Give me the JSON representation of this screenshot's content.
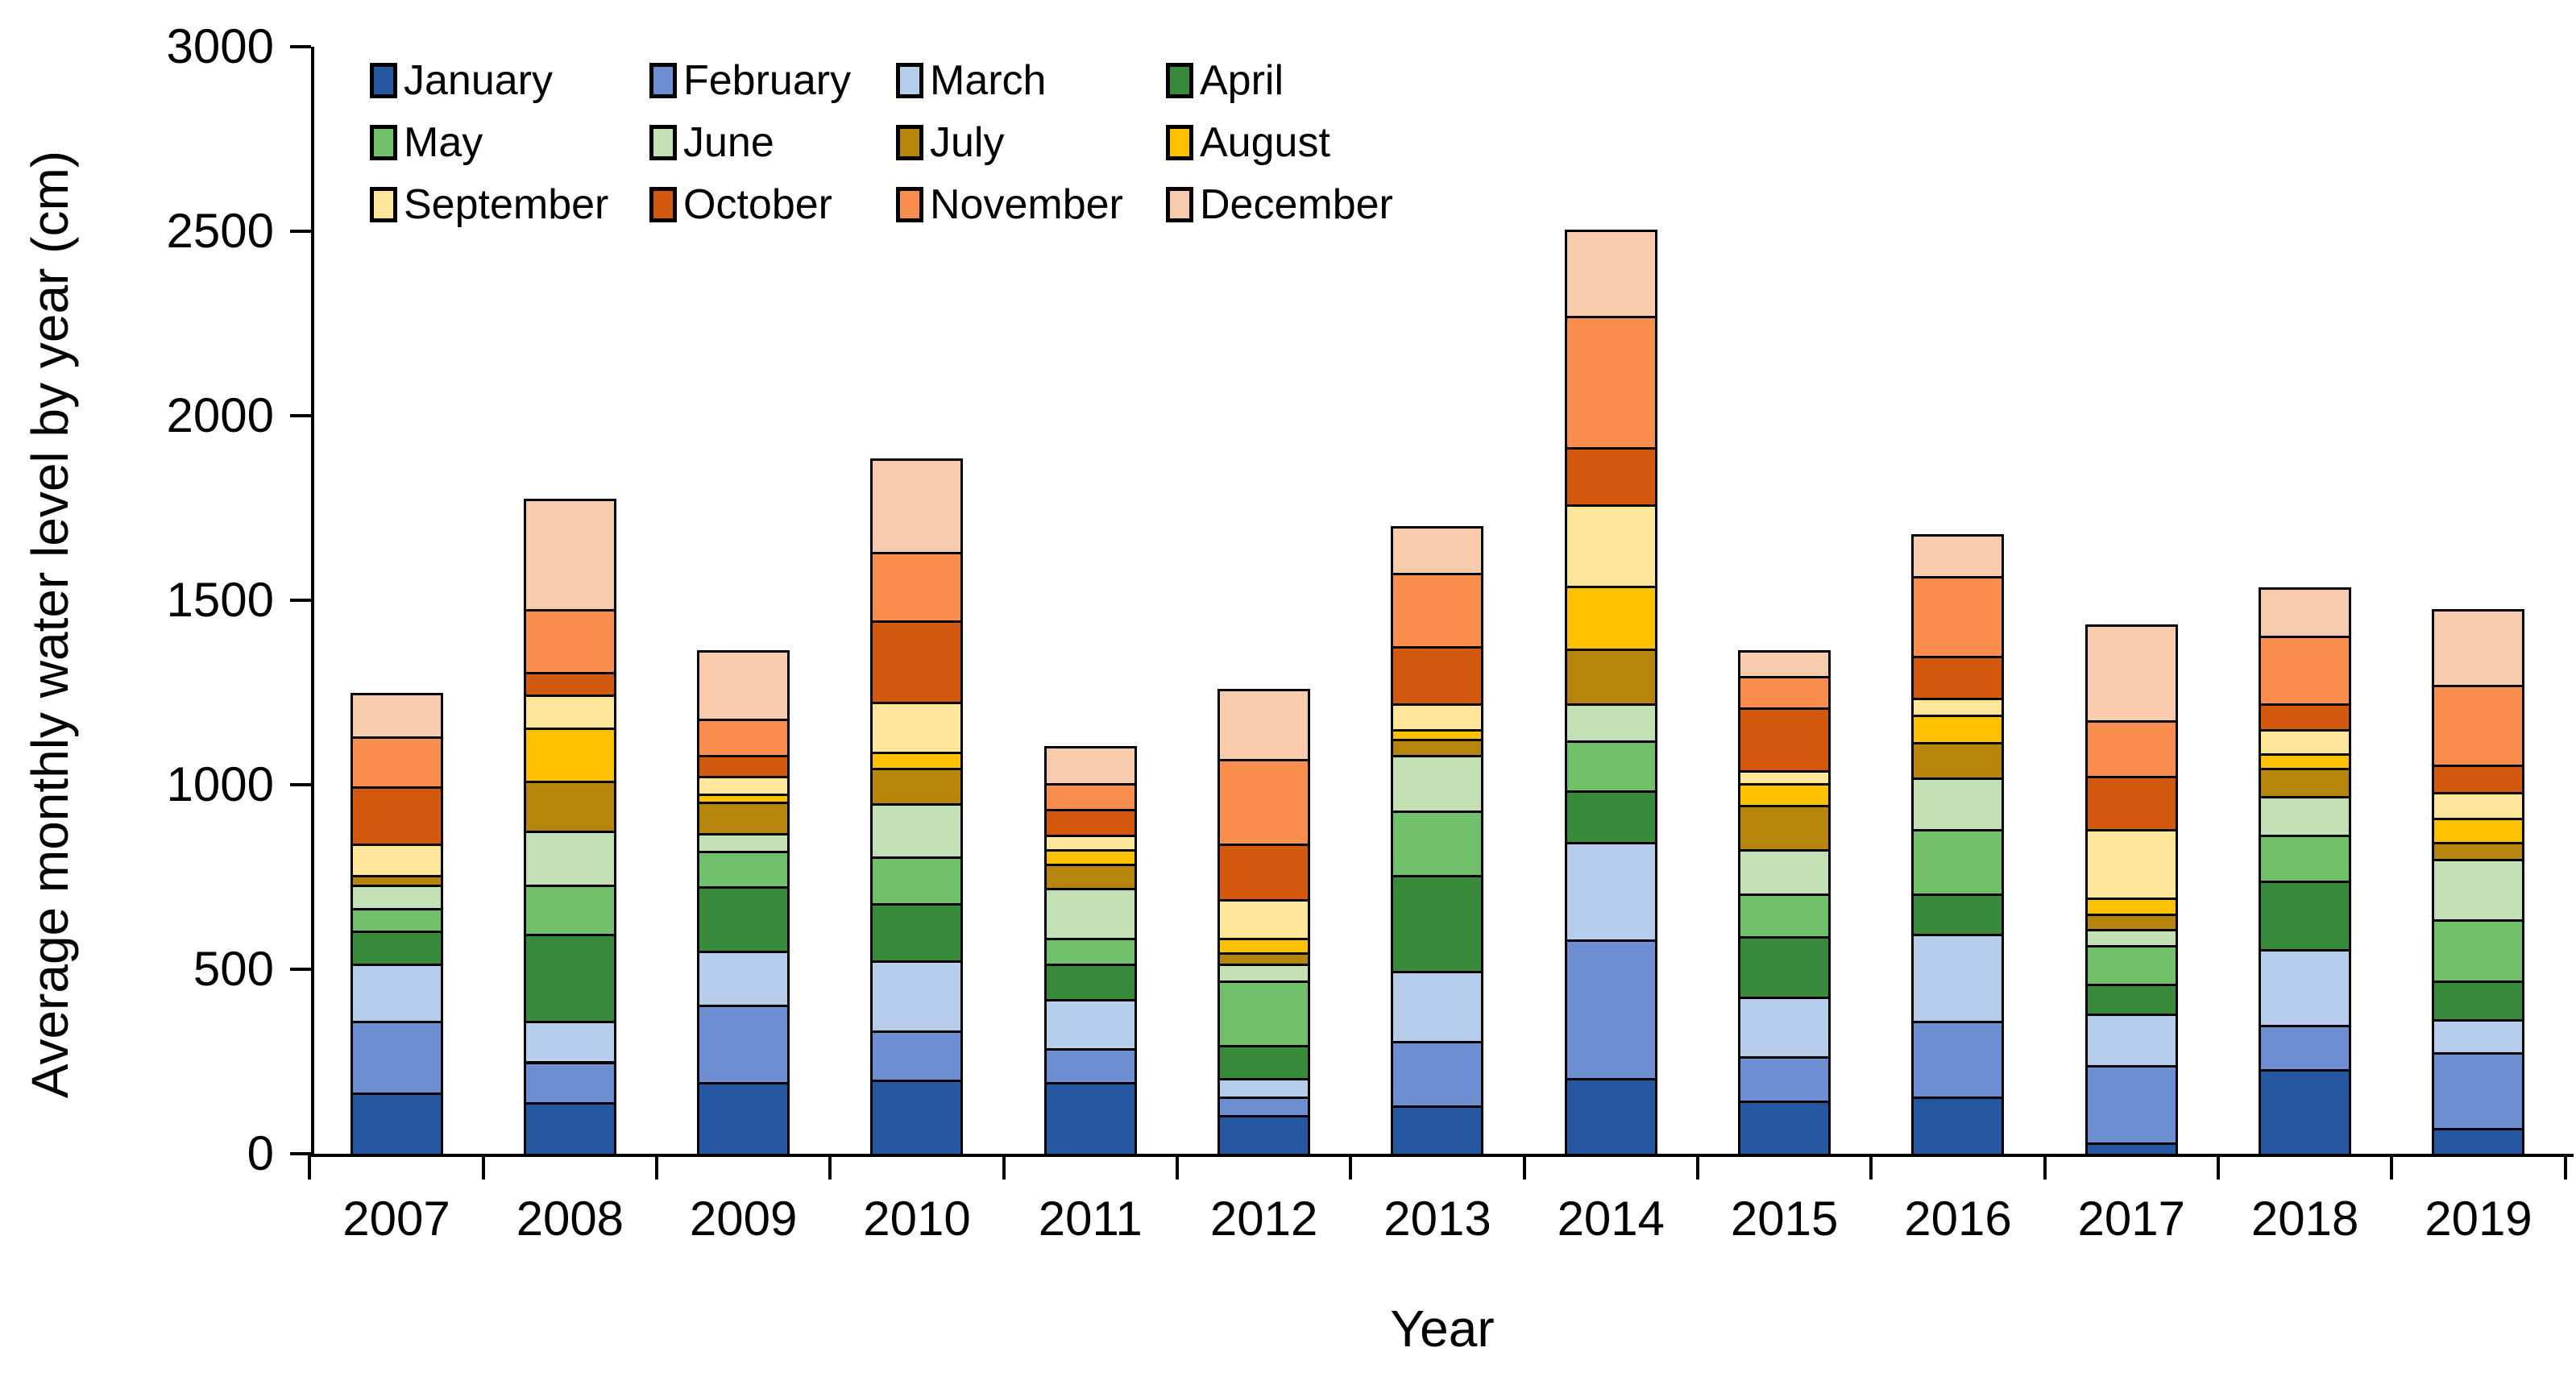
{
  "chart_data": {
    "type": "bar",
    "stacked": true,
    "title": "",
    "xlabel": "Year",
    "ylabel": "Average monthly water level by year (cm)",
    "ylim": [
      0,
      3000
    ],
    "yticks": [
      0,
      500,
      1000,
      1500,
      2000,
      2500,
      3000
    ],
    "grid": false,
    "legend_position": "top-left",
    "categories": [
      "2007",
      "2008",
      "2009",
      "2010",
      "2011",
      "2012",
      "2013",
      "2014",
      "2015",
      "2016",
      "2017",
      "2018",
      "2019"
    ],
    "series": [
      {
        "name": "January",
        "color": "#2457A0",
        "values": [
          165,
          140,
          195,
          200,
          195,
          105,
          130,
          205,
          145,
          155,
          30,
          230,
          70
        ]
      },
      {
        "name": "February",
        "color": "#6D8FD1",
        "values": [
          195,
          110,
          210,
          135,
          90,
          50,
          175,
          375,
          120,
          205,
          210,
          120,
          205
        ]
      },
      {
        "name": "March",
        "color": "#B5CDEA",
        "values": [
          155,
          110,
          145,
          190,
          135,
          50,
          190,
          265,
          160,
          235,
          140,
          205,
          90
        ]
      },
      {
        "name": "April",
        "color": "#3A8A3C",
        "values": [
          90,
          235,
          175,
          155,
          95,
          90,
          260,
          140,
          165,
          110,
          80,
          185,
          105
        ]
      },
      {
        "name": "May",
        "color": "#71C06C",
        "values": [
          60,
          135,
          95,
          125,
          70,
          175,
          175,
          135,
          115,
          175,
          105,
          125,
          165
        ]
      },
      {
        "name": "June",
        "color": "#C2E0B4",
        "values": [
          65,
          145,
          50,
          145,
          135,
          45,
          150,
          100,
          120,
          140,
          45,
          105,
          165
        ]
      },
      {
        "name": "July",
        "color": "#B5860B",
        "values": [
          25,
          135,
          85,
          95,
          65,
          30,
          45,
          150,
          120,
          95,
          40,
          75,
          45
        ]
      },
      {
        "name": "August",
        "color": "#FFC000",
        "values": [
          0,
          145,
          20,
          45,
          40,
          40,
          25,
          170,
          60,
          75,
          45,
          40,
          65
        ]
      },
      {
        "name": "September",
        "color": "#FFE699",
        "values": [
          85,
          90,
          50,
          135,
          40,
          105,
          70,
          220,
          35,
          45,
          185,
          65,
          70
        ]
      },
      {
        "name": "October",
        "color": "#D2590E",
        "values": [
          155,
          60,
          55,
          220,
          70,
          150,
          155,
          155,
          170,
          115,
          145,
          70,
          75
        ]
      },
      {
        "name": "November",
        "color": "#F98E4E",
        "values": [
          135,
          170,
          100,
          185,
          70,
          230,
          200,
          355,
          85,
          215,
          150,
          185,
          215
        ]
      },
      {
        "name": "December",
        "color": "#F9CBAD",
        "values": [
          120,
          300,
          185,
          255,
          100,
          190,
          125,
          235,
          70,
          115,
          260,
          130,
          205
        ]
      }
    ]
  }
}
